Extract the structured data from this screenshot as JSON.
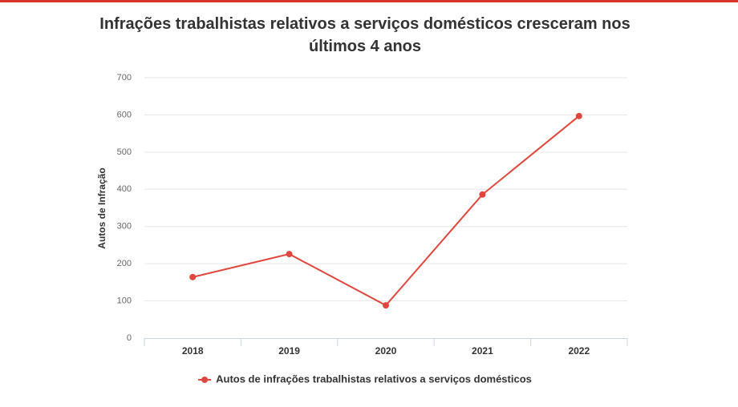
{
  "chart_data": {
    "type": "line",
    "title": "Infrações trabalhistas relativos a serviços domésticos cresceram nos últimos 4 anos",
    "y_label": "Autos de Infração",
    "categories": [
      "2018",
      "2019",
      "2020",
      "2021",
      "2022"
    ],
    "series": [
      {
        "name": "Autos de infrações trabalhistas relativos a serviços domésticos",
        "color": "#e0463d",
        "values": [
          164,
          226,
          88,
          386,
          597
        ]
      }
    ],
    "ylim": [
      0,
      700
    ],
    "yticks": [
      0,
      100,
      200,
      300,
      400,
      500,
      600,
      700
    ],
    "grid": true,
    "legend": "bottom"
  }
}
